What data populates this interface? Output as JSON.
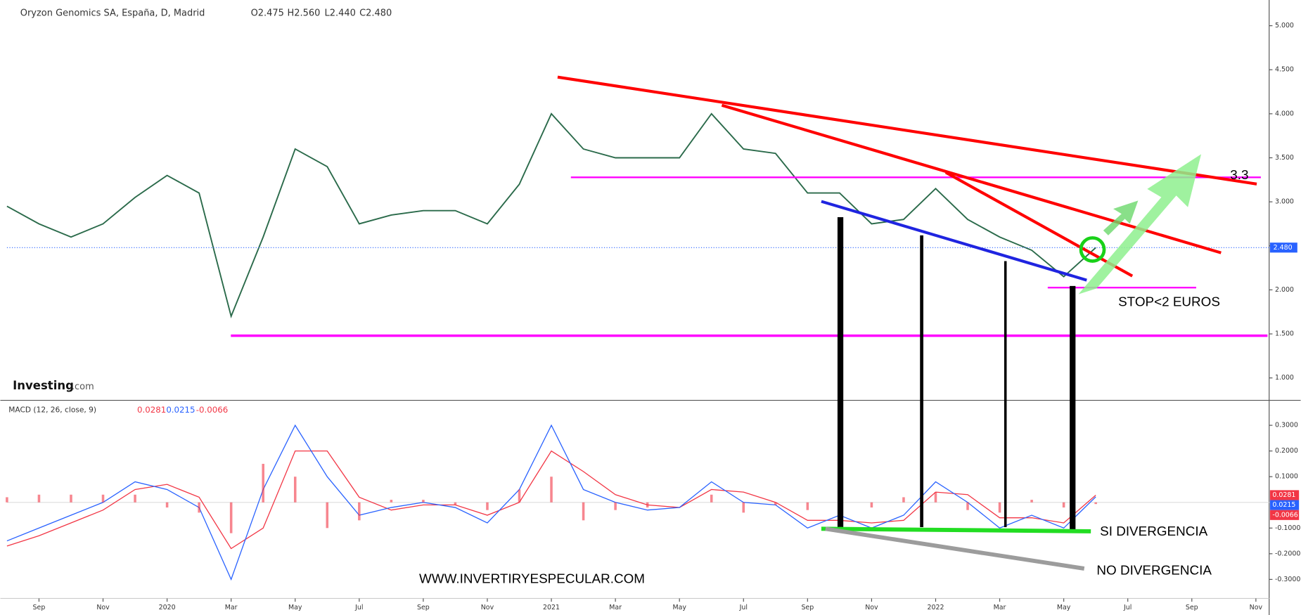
{
  "header": {
    "title": "Oryzon Genomics SA, España, D, Madrid",
    "ohlc": [
      "O2.475",
      "H2.560",
      "L2.440",
      "C2.480"
    ]
  },
  "logo": {
    "name": "Investing",
    "suffix": ".com"
  },
  "annotations": [
    "3.3",
    "STOP<2 EUROS",
    "SI DIVERGENCIA",
    "NO DIVERGENCIA",
    "WWW.INVERTIRYESPECULAR.COM"
  ],
  "chart_data": [
    {
      "type": "line",
      "x": [
        "2019-08",
        "2019-09",
        "2019-10",
        "2019-11",
        "2019-12",
        "2020-01",
        "2020-02",
        "2020-03",
        "2020-04",
        "2020-05",
        "2020-06",
        "2020-07",
        "2020-08",
        "2020-09",
        "2020-10",
        "2020-11",
        "2020-12",
        "2021-01",
        "2021-02",
        "2021-03",
        "2021-04",
        "2021-05",
        "2021-06",
        "2021-07",
        "2021-08",
        "2021-09",
        "2021-10",
        "2021-11",
        "2021-12",
        "2022-01",
        "2022-02",
        "2022-03",
        "2022-04",
        "2022-05",
        "2022-06"
      ],
      "xlim": [
        "2019-08",
        "2022-11"
      ],
      "series": [
        {
          "name": "Oryzon Genomics SA",
          "color": "#2a6a4a",
          "values": [
            2.95,
            2.75,
            2.6,
            2.75,
            3.05,
            3.3,
            3.1,
            1.7,
            2.6,
            3.6,
            3.4,
            2.75,
            2.85,
            2.9,
            2.9,
            2.75,
            3.2,
            4.0,
            3.6,
            3.5,
            3.5,
            3.5,
            4.0,
            3.6,
            3.55,
            3.1,
            3.1,
            2.75,
            2.8,
            3.15,
            2.8,
            2.6,
            2.45,
            2.15,
            2.48
          ]
        }
      ],
      "ylim": [
        0.755,
        5.292
      ],
      "yticks": [
        {
          "value": 1,
          "label": "1.000"
        },
        {
          "value": 1.5,
          "label": "1.500"
        },
        {
          "value": 2,
          "label": "2.000"
        },
        {
          "value": 2.5,
          "label": "2.500"
        },
        {
          "value": 3,
          "label": "3.000"
        },
        {
          "value": 3.5,
          "label": "3.500"
        },
        {
          "value": 4,
          "label": "4.000"
        },
        {
          "value": 4.5,
          "label": "4.500"
        },
        {
          "value": 5,
          "label": "5.000"
        }
      ],
      "last_price": {
        "value": 2.48,
        "label": "2.480",
        "color": "#2962ff"
      }
    },
    {
      "type": "line",
      "title": "MACD (12, 26, close, 9)",
      "x": [
        "2019-08",
        "2019-09",
        "2019-10",
        "2019-11",
        "2019-12",
        "2020-01",
        "2020-02",
        "2020-03",
        "2020-04",
        "2020-05",
        "2020-06",
        "2020-07",
        "2020-08",
        "2020-09",
        "2020-10",
        "2020-11",
        "2020-12",
        "2021-01",
        "2021-02",
        "2021-03",
        "2021-04",
        "2021-05",
        "2021-06",
        "2021-07",
        "2021-08",
        "2021-09",
        "2021-10",
        "2021-11",
        "2021-12",
        "2022-01",
        "2022-02",
        "2022-03",
        "2022-04",
        "2022-05",
        "2022-06"
      ],
      "xlim": [
        "2019-08",
        "2022-11"
      ],
      "xticks": [
        {
          "value": "2019-09",
          "label": "Sep"
        },
        {
          "value": "2019-11",
          "label": "Nov"
        },
        {
          "value": "2020-01",
          "label": "2020"
        },
        {
          "value": "2020-03",
          "label": "Mar"
        },
        {
          "value": "2020-05",
          "label": "May"
        },
        {
          "value": "2020-07",
          "label": "Jul"
        },
        {
          "value": "2020-09",
          "label": "Sep"
        },
        {
          "value": "2020-11",
          "label": "Nov"
        },
        {
          "value": "2021-01",
          "label": "2021"
        },
        {
          "value": "2021-03",
          "label": "Mar"
        },
        {
          "value": "2021-05",
          "label": "May"
        },
        {
          "value": "2021-07",
          "label": "Jul"
        },
        {
          "value": "2021-09",
          "label": "Sep"
        },
        {
          "value": "2021-11",
          "label": "Nov"
        },
        {
          "value": "2022-01",
          "label": "2022"
        },
        {
          "value": "2022-03",
          "label": "Mar"
        },
        {
          "value": "2022-05",
          "label": "May"
        },
        {
          "value": "2022-07",
          "label": "Jul"
        },
        {
          "value": "2022-09",
          "label": "Sep"
        },
        {
          "value": "2022-11",
          "label": "Nov"
        }
      ],
      "series": [
        {
          "name": "Signal",
          "color": "#f23645",
          "type": "line",
          "values": [
            -0.17,
            -0.13,
            -0.08,
            -0.03,
            0.05,
            0.07,
            0.02,
            -0.18,
            -0.1,
            0.2,
            0.2,
            0.02,
            -0.03,
            -0.01,
            -0.01,
            -0.05,
            0.0,
            0.2,
            0.12,
            0.03,
            -0.01,
            -0.02,
            0.05,
            0.04,
            0.0,
            -0.07,
            -0.07,
            -0.08,
            -0.07,
            0.04,
            0.03,
            -0.06,
            -0.06,
            -0.08,
            0.0281
          ]
        },
        {
          "name": "MACD",
          "color": "#2962ff",
          "type": "line",
          "values": [
            -0.15,
            -0.1,
            -0.05,
            0.0,
            0.08,
            0.05,
            -0.02,
            -0.3,
            0.05,
            0.3,
            0.1,
            -0.05,
            -0.02,
            0.0,
            -0.02,
            -0.08,
            0.05,
            0.3,
            0.05,
            0.0,
            -0.03,
            -0.02,
            0.08,
            0.0,
            -0.01,
            -0.1,
            -0.05,
            -0.1,
            -0.05,
            0.08,
            0.0,
            -0.1,
            -0.05,
            -0.1,
            0.0215
          ]
        },
        {
          "name": "Histogram",
          "color": "#f23645",
          "type": "bar",
          "values": [
            0.02,
            0.03,
            0.03,
            0.03,
            0.03,
            -0.02,
            -0.04,
            -0.12,
            0.15,
            0.1,
            -0.1,
            -0.07,
            0.01,
            0.01,
            -0.01,
            -0.03,
            0.05,
            0.1,
            -0.07,
            -0.03,
            -0.02,
            0.0,
            0.03,
            -0.04,
            -0.01,
            -0.03,
            0.02,
            -0.02,
            0.02,
            0.04,
            -0.03,
            -0.04,
            0.01,
            -0.02,
            -0.0066
          ]
        }
      ],
      "ylim": [
        -0.374,
        0.394
      ],
      "yticks": [
        {
          "value": -0.3,
          "label": "-0.3000"
        },
        {
          "value": -0.2,
          "label": "-0.2000"
        },
        {
          "value": -0.1,
          "label": "-0.1000"
        },
        {
          "value": 0.1,
          "label": "0.1000"
        },
        {
          "value": 0.2,
          "label": "0.2000"
        },
        {
          "value": 0.3,
          "label": "0.3000"
        }
      ]
    }
  ]
}
